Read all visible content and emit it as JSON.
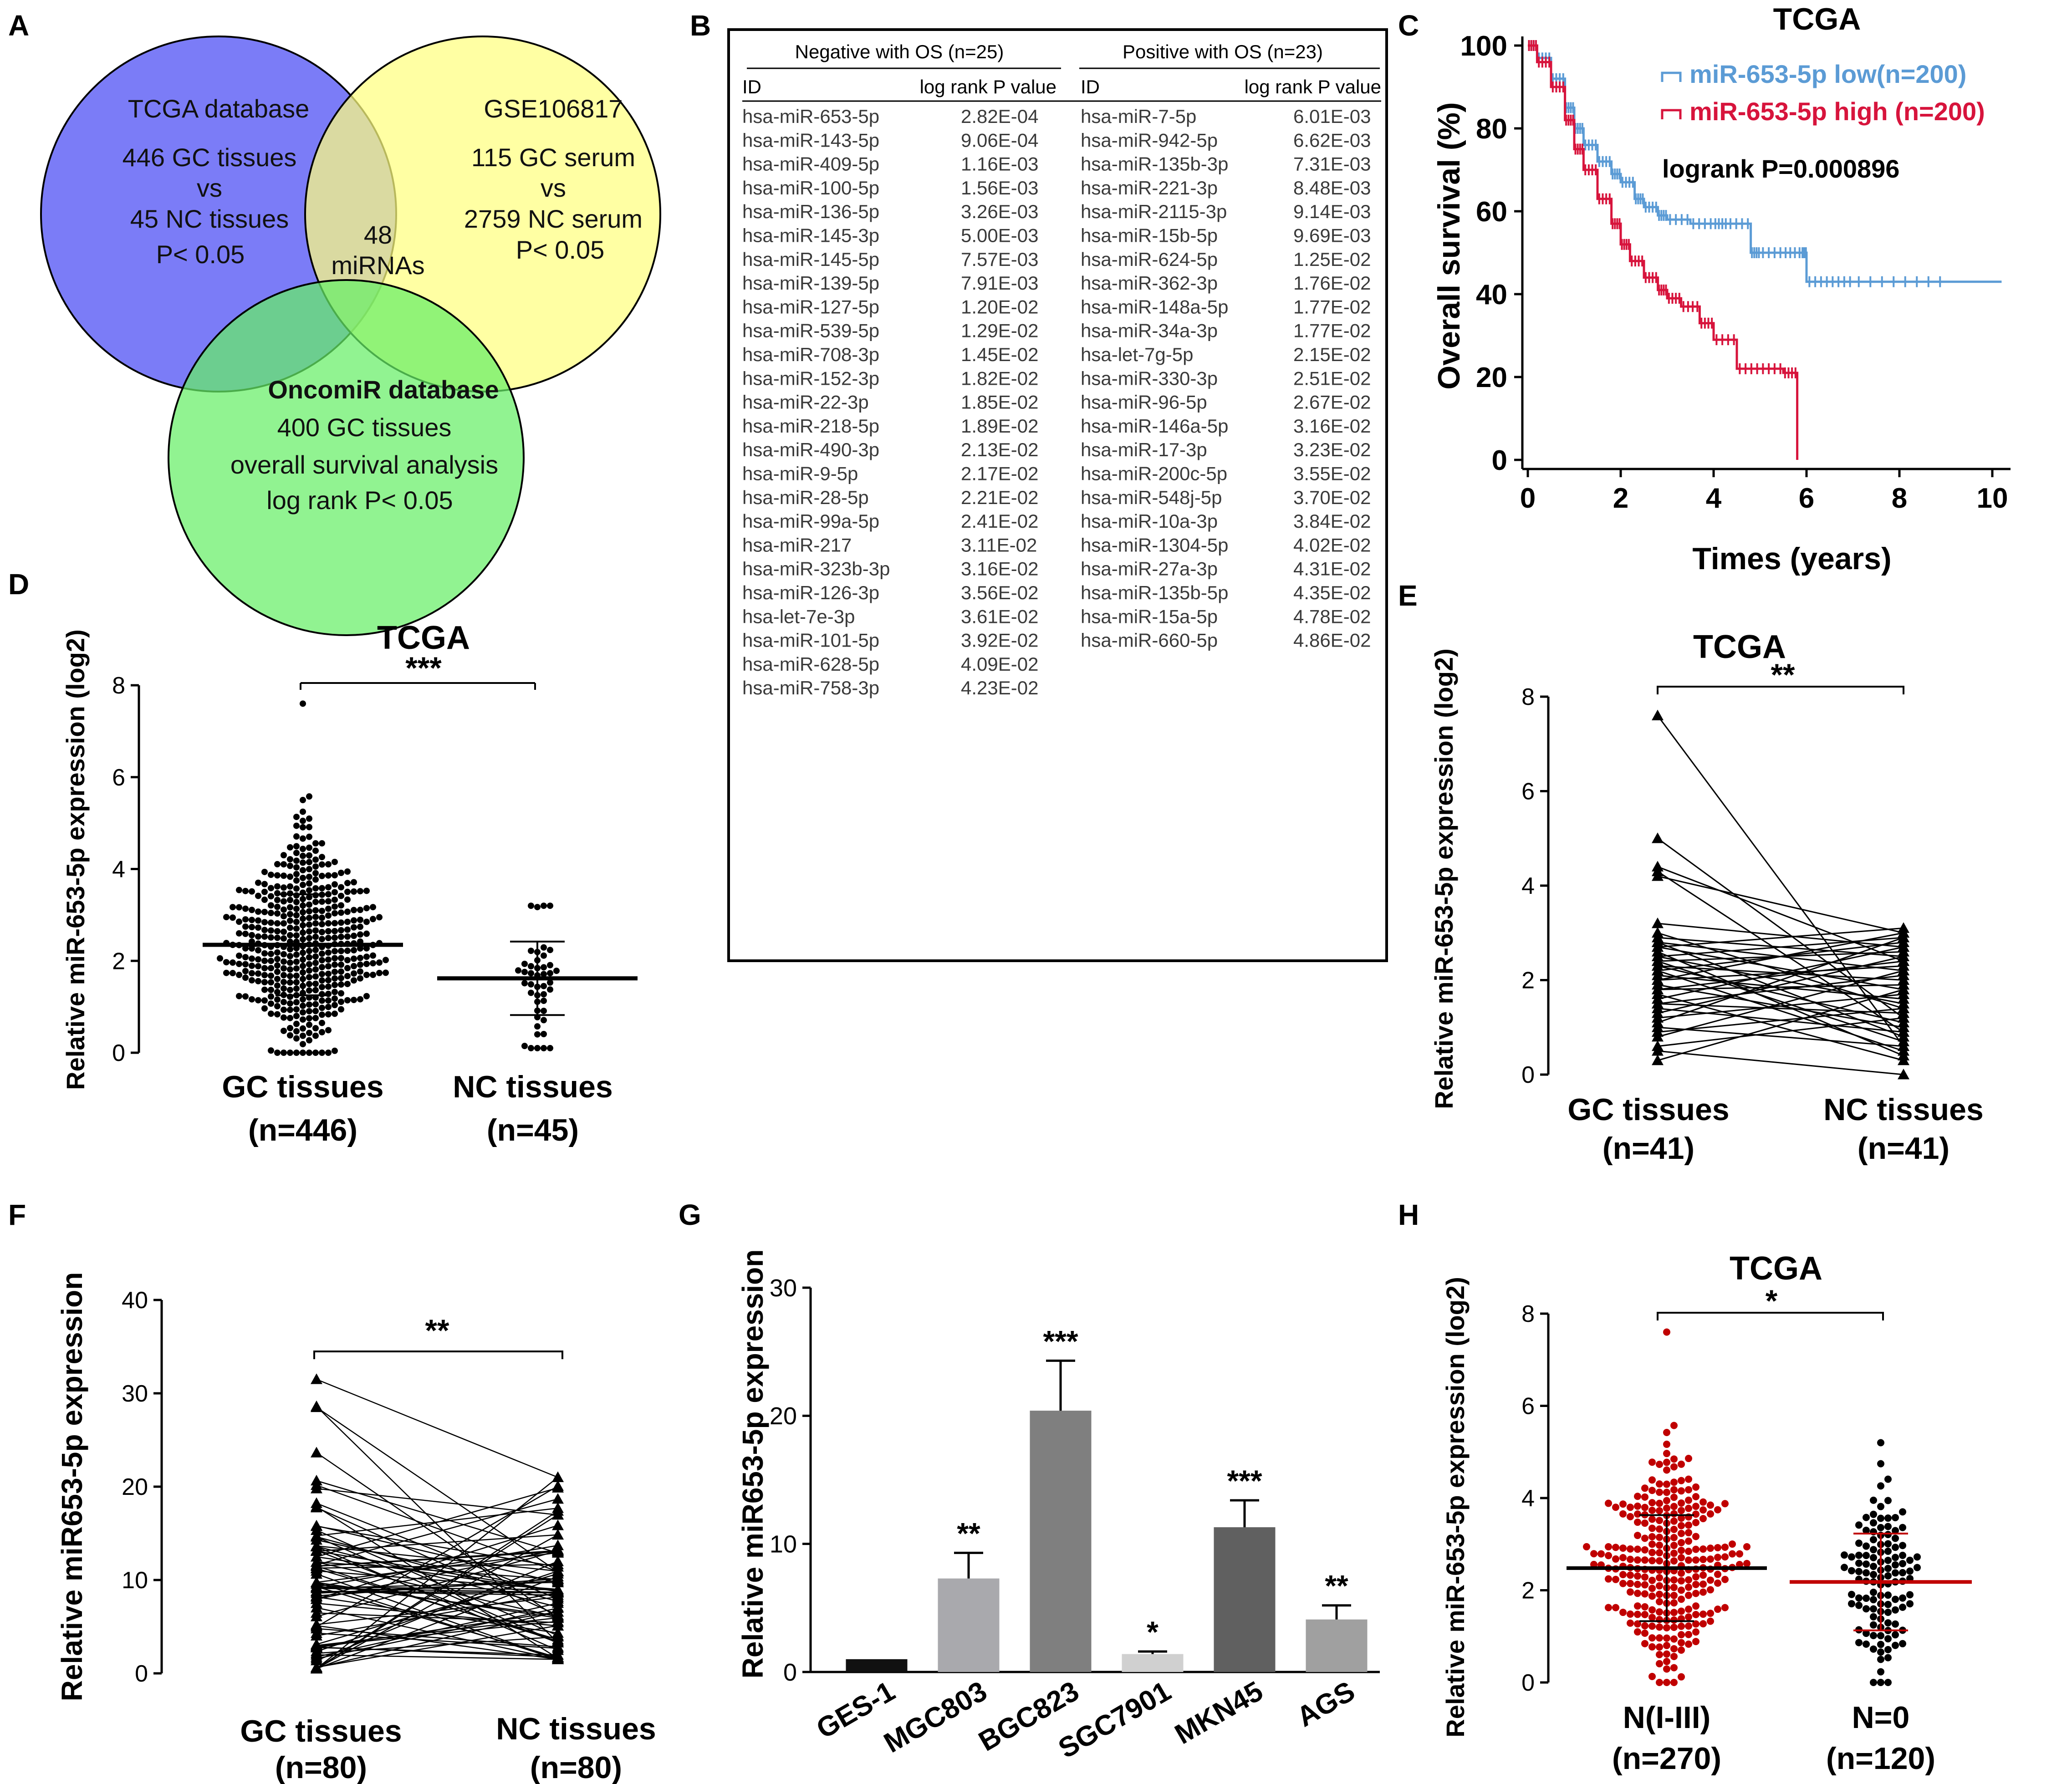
{
  "panel_letters": {
    "a": "A",
    "b": "B",
    "c": "C",
    "d": "D",
    "e": "E",
    "f": "F",
    "g": "G",
    "h": "H"
  },
  "venn": {
    "left": [
      "TCGA database",
      "446 GC tissues",
      "vs",
      "45 NC tissues",
      "P< 0.05"
    ],
    "right": [
      "GSE106817",
      "115 GC serum",
      "vs",
      "2759 NC serum",
      "P< 0.05"
    ],
    "bottom_title": "OncomiR database",
    "bottom": [
      "400 GC tissues",
      "overall survival analysis",
      "log rank P< 0.05"
    ],
    "center": [
      "48",
      "miRNAs"
    ],
    "colors": {
      "left": "#7b7cf7",
      "right": "#ffff80",
      "bottom": "#82f57f"
    }
  },
  "mirna_table": {
    "neg_header": "Negative with OS (n=25)",
    "pos_header": "Positive with OS (n=23)",
    "col_id": "ID",
    "col_p": "log rank P value",
    "negative": [
      [
        "hsa-miR-653-5p",
        "2.82E-04"
      ],
      [
        "hsa-miR-143-5p",
        "9.06E-04"
      ],
      [
        "hsa-miR-409-5p",
        "1.16E-03"
      ],
      [
        "hsa-miR-100-5p",
        "1.56E-03"
      ],
      [
        "hsa-miR-136-5p",
        "3.26E-03"
      ],
      [
        "hsa-miR-145-3p",
        "5.00E-03"
      ],
      [
        "hsa-miR-145-5p",
        "7.57E-03"
      ],
      [
        "hsa-miR-139-5p",
        "7.91E-03"
      ],
      [
        "hsa-miR-127-5p",
        "1.20E-02"
      ],
      [
        "hsa-miR-539-5p",
        "1.29E-02"
      ],
      [
        "hsa-miR-708-3p",
        "1.45E-02"
      ],
      [
        "hsa-miR-152-3p",
        "1.82E-02"
      ],
      [
        "hsa-miR-22-3p",
        "1.85E-02"
      ],
      [
        "hsa-miR-218-5p",
        "1.89E-02"
      ],
      [
        "hsa-miR-490-3p",
        "2.13E-02"
      ],
      [
        "hsa-miR-9-5p",
        "2.17E-02"
      ],
      [
        "hsa-miR-28-5p",
        "2.21E-02"
      ],
      [
        "hsa-miR-99a-5p",
        "2.41E-02"
      ],
      [
        "hsa-miR-217",
        "3.11E-02"
      ],
      [
        "hsa-miR-323b-3p",
        "3.16E-02"
      ],
      [
        "hsa-miR-126-3p",
        "3.56E-02"
      ],
      [
        "hsa-let-7e-3p",
        "3.61E-02"
      ],
      [
        "hsa-miR-101-5p",
        "3.92E-02"
      ],
      [
        "hsa-miR-628-5p",
        "4.09E-02"
      ],
      [
        "hsa-miR-758-3p",
        "4.23E-02"
      ]
    ],
    "positive": [
      [
        "hsa-miR-7-5p",
        "6.01E-03"
      ],
      [
        "hsa-miR-942-5p",
        "6.62E-03"
      ],
      [
        "hsa-miR-135b-3p",
        "7.31E-03"
      ],
      [
        "hsa-miR-221-3p",
        "8.48E-03"
      ],
      [
        "hsa-miR-2115-3p",
        "9.14E-03"
      ],
      [
        "hsa-miR-15b-5p",
        "9.69E-03"
      ],
      [
        "hsa-miR-624-5p",
        "1.25E-02"
      ],
      [
        "hsa-miR-362-3p",
        "1.76E-02"
      ],
      [
        "hsa-miR-148a-5p",
        "1.77E-02"
      ],
      [
        "hsa-miR-34a-3p",
        "1.77E-02"
      ],
      [
        "hsa-let-7g-5p",
        "2.15E-02"
      ],
      [
        "hsa-miR-330-3p",
        "2.51E-02"
      ],
      [
        "hsa-miR-96-5p",
        "2.67E-02"
      ],
      [
        "hsa-miR-146a-5p",
        "3.16E-02"
      ],
      [
        "hsa-miR-17-3p",
        "3.23E-02"
      ],
      [
        "hsa-miR-200c-5p",
        "3.55E-02"
      ],
      [
        "hsa-miR-548j-5p",
        "3.70E-02"
      ],
      [
        "hsa-miR-10a-3p",
        "3.84E-02"
      ],
      [
        "hsa-miR-1304-5p",
        "4.02E-02"
      ],
      [
        "hsa-miR-27a-3p",
        "4.31E-02"
      ],
      [
        "hsa-miR-135b-5p",
        "4.35E-02"
      ],
      [
        "hsa-miR-15a-5p",
        "4.78E-02"
      ],
      [
        "hsa-miR-660-5p",
        "4.86E-02"
      ]
    ]
  },
  "colors": {
    "km_low": "#5b9bd5",
    "km_high": "#d7143c",
    "h_red": "#c00000",
    "black": "#000000"
  },
  "chart_data": [
    {
      "panel": "C",
      "type": "line",
      "title": "TCGA",
      "xlabel": "Times (years)",
      "ylabel": "Overall survival (%)",
      "xlim": [
        0,
        10
      ],
      "ylim": [
        0,
        100
      ],
      "xticks": [
        0,
        2,
        4,
        6,
        8,
        10
      ],
      "yticks": [
        0,
        20,
        40,
        60,
        80,
        100
      ],
      "annotation": "logrank P=0.000896",
      "series": [
        {
          "name": "miR-653-5p low(n=200)",
          "x": [
            0,
            0.2,
            0.5,
            0.8,
            1.0,
            1.2,
            1.5,
            1.8,
            2.0,
            2.3,
            2.5,
            2.8,
            3.0,
            3.5,
            4.0,
            4.3,
            4.8,
            5.0,
            5.5,
            5.9,
            6.0,
            6.5,
            7.0,
            8.0,
            9.0,
            10.2
          ],
          "y": [
            100,
            97,
            92,
            85,
            80,
            76,
            72,
            69,
            67,
            63,
            61,
            59,
            58,
            57,
            57,
            57,
            50,
            50,
            50,
            50,
            43,
            43,
            43,
            43,
            43,
            43
          ]
        },
        {
          "name": "miR-653-5p high (n=200)",
          "x": [
            0,
            0.2,
            0.5,
            0.8,
            1.0,
            1.2,
            1.5,
            1.8,
            2.0,
            2.2,
            2.5,
            2.8,
            3.0,
            3.3,
            3.7,
            4.0,
            4.5,
            5.0,
            5.5,
            5.8,
            5.8
          ],
          "y": [
            100,
            96,
            90,
            82,
            75,
            70,
            63,
            57,
            52,
            48,
            44,
            41,
            39,
            37,
            33,
            29,
            22,
            22,
            21,
            21,
            0
          ]
        }
      ]
    },
    {
      "panel": "D",
      "type": "scatter",
      "title": "TCGA",
      "ylabel": "Relative miR-653-5p expression (log2)",
      "ylim": [
        0,
        8
      ],
      "yticks": [
        0,
        2,
        4,
        6,
        8
      ],
      "significance": "***",
      "groups": [
        {
          "label": "GC tissues",
          "n": "(n=446)",
          "count": 446,
          "mean": 2.35,
          "sd": 1.1,
          "min": 0,
          "max": 7.6
        },
        {
          "label": "NC tissues",
          "n": "(n=45)",
          "count": 45,
          "mean": 1.62,
          "sd": 0.8,
          "min": 0.1,
          "max": 3.2
        }
      ]
    },
    {
      "panel": "E",
      "type": "scatter",
      "title": "TCGA",
      "ylabel": "Relative miR-653-5p expression (log2)",
      "ylim": [
        0,
        8
      ],
      "yticks": [
        0,
        2,
        4,
        6,
        8
      ],
      "significance": "**",
      "groups": [
        {
          "label": "GC tissues",
          "n": "(n=41)",
          "count": 41
        },
        {
          "label": "NC tissues",
          "n": "(n=41)",
          "count": 41
        }
      ],
      "paired_gc": [
        7.6,
        5.0,
        4.4,
        4.3,
        4.2,
        3.2,
        3.0,
        2.9,
        2.8,
        2.8,
        2.7,
        2.7,
        2.6,
        2.5,
        2.5,
        2.4,
        2.4,
        2.3,
        2.3,
        2.2,
        2.2,
        2.1,
        2.0,
        2.0,
        1.9,
        1.8,
        1.8,
        1.7,
        1.6,
        1.5,
        1.5,
        1.4,
        1.3,
        1.2,
        1.1,
        1.0,
        0.9,
        0.8,
        0.6,
        0.5,
        0.3
      ],
      "paired_nc": [
        0.6,
        1.2,
        2.4,
        0.9,
        3.0,
        2.7,
        1.4,
        2.5,
        0.8,
        2.2,
        1.8,
        3.1,
        0.4,
        2.9,
        1.5,
        0.7,
        2.6,
        2.0,
        1.1,
        2.8,
        0.5,
        1.6,
        2.3,
        3.0,
        1.0,
        2.4,
        1.9,
        0.3,
        2.7,
        1.3,
        2.1,
        0.9,
        2.5,
        1.7,
        2.9,
        0.6,
        1.4,
        2.2,
        1.2,
        0.0,
        1.8
      ]
    },
    {
      "panel": "F",
      "type": "scatter",
      "ylabel": "Relative miR653-5p expression",
      "ylim": [
        0,
        40
      ],
      "yticks": [
        0,
        10,
        20,
        30,
        40
      ],
      "significance": "**",
      "groups": [
        {
          "label": "GC tissues",
          "n": "(n=80)",
          "count": 80,
          "min": 0.5,
          "max": 31.5
        },
        {
          "label": "NC tissues",
          "n": "(n=80)",
          "count": 80,
          "min": 1.5,
          "max": 21.0
        }
      ]
    },
    {
      "panel": "G",
      "type": "bar",
      "ylabel": "Relative miR653-5p expression",
      "ylim": [
        0,
        30
      ],
      "yticks": [
        0,
        10,
        20,
        30
      ],
      "categories": [
        "GES-1",
        "MGC803",
        "BGC823",
        "SGC7901",
        "MKN45",
        "AGS"
      ],
      "values": [
        1.0,
        7.3,
        20.4,
        1.4,
        11.3,
        4.1
      ],
      "errors": [
        0,
        2.0,
        3.9,
        0.2,
        2.1,
        1.1
      ],
      "significance": [
        "",
        "**",
        "***",
        "*",
        "***",
        "**"
      ],
      "bar_colors": [
        "#111111",
        "#a9a9ad",
        "#7f7f7f",
        "#d0d0d0",
        "#606060",
        "#a0a0a0"
      ]
    },
    {
      "panel": "H",
      "type": "scatter",
      "title": "TCGA",
      "ylabel": "Relative miR-653-5p expression (log2)",
      "ylim": [
        0,
        8
      ],
      "yticks": [
        0,
        2,
        4,
        6,
        8
      ],
      "significance": "*",
      "groups": [
        {
          "label": "N(I-III)",
          "n": "(n=270)",
          "count": 270,
          "mean": 2.48,
          "sd": 1.15,
          "min": 0,
          "max": 7.6
        },
        {
          "label": "N=0",
          "n": "(n=120)",
          "count": 120,
          "mean": 2.18,
          "sd": 1.05,
          "min": 0,
          "max": 5.2
        }
      ]
    }
  ]
}
